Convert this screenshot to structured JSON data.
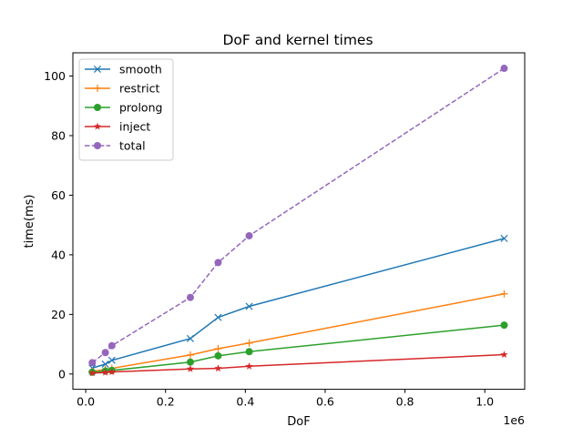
{
  "chart_data": {
    "type": "line",
    "title": "DoF and kernel times",
    "xlabel": "DoF",
    "ylabel": "time(ms)",
    "x_offset_label": "1e6",
    "x_multiplier": 1000000,
    "xlim": [
      -0.0322,
      1.1
    ],
    "ylim": [
      -5.13,
      107.8
    ],
    "xticks": [
      0.0,
      0.2,
      0.4,
      0.6,
      0.8,
      1.0
    ],
    "xtick_labels": [
      "0.0",
      "0.2",
      "0.4",
      "0.6",
      "0.8",
      "1.0"
    ],
    "yticks": [
      0,
      20,
      40,
      60,
      80,
      100
    ],
    "ytick_labels": [
      "0",
      "20",
      "40",
      "60",
      "80",
      "100"
    ],
    "legend_position": "upper-left",
    "x": [
      16384,
      49152,
      65536,
      262144,
      331776,
      409600,
      1048576
    ],
    "series": [
      {
        "name": "smooth",
        "color": "#1f77b4",
        "marker": "x",
        "dash": "solid",
        "values": [
          2.0,
          3.3,
          4.6,
          11.9,
          19.0,
          22.7,
          45.5
        ]
      },
      {
        "name": "restrict",
        "color": "#ff7f0e",
        "marker": "plus",
        "dash": "solid",
        "values": [
          0.9,
          1.5,
          1.9,
          6.4,
          8.5,
          10.4,
          26.9
        ]
      },
      {
        "name": "prolong",
        "color": "#2ca02c",
        "marker": "circle",
        "dash": "solid",
        "values": [
          0.6,
          1.0,
          1.2,
          4.0,
          6.1,
          7.5,
          16.4
        ]
      },
      {
        "name": "inject",
        "color": "#d62728",
        "marker": "star",
        "dash": "solid",
        "values": [
          0.3,
          0.5,
          0.7,
          1.7,
          1.9,
          2.6,
          6.5
        ]
      },
      {
        "name": "total",
        "color": "#9467bd",
        "marker": "circle",
        "dash": "dashed",
        "values": [
          3.8,
          7.2,
          9.5,
          25.7,
          37.4,
          46.4,
          102.6
        ]
      }
    ]
  }
}
